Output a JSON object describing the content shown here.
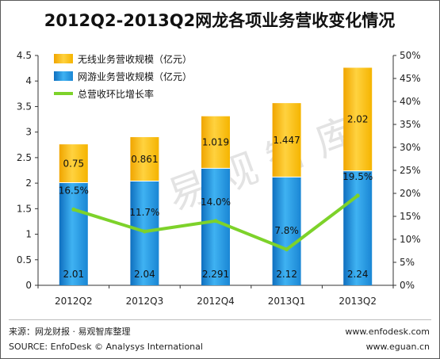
{
  "chart_data": {
    "type": "bar",
    "title": "2012Q2-2013Q2网龙各项业务营收变化情况",
    "categories": [
      "2012Q2",
      "2012Q3",
      "2012Q4",
      "2013Q1",
      "2013Q2"
    ],
    "series": [
      {
        "name": "网游业务营收规模（亿元）",
        "kind": "bar",
        "stack": "revenue",
        "axis": "left",
        "color": "#1f8fd8",
        "values": [
          2.01,
          2.04,
          2.291,
          2.12,
          2.24
        ],
        "labels": [
          "2.01",
          "2.04",
          "2.291",
          "2.12",
          "2.24"
        ]
      },
      {
        "name": "无线业务营收规模（亿元）",
        "kind": "bar",
        "stack": "revenue",
        "axis": "left",
        "color": "#f5b400",
        "values": [
          0.75,
          0.861,
          1.019,
          1.447,
          2.02
        ],
        "labels": [
          "0.75",
          "0.861",
          "1.019",
          "1.447",
          "2.02"
        ]
      },
      {
        "name": "总营收环比增长率",
        "kind": "line",
        "axis": "right",
        "color": "#7dd22a",
        "values": [
          16.5,
          11.7,
          14.0,
          7.8,
          19.5
        ],
        "labels": [
          "16.5%",
          "11.7%",
          "14.0%",
          "7.8%",
          "19.5%"
        ]
      }
    ],
    "ylim": [
      0,
      4.5
    ],
    "y_ticks": [
      "0",
      "0.5",
      "1",
      "1.5",
      "2",
      "2.5",
      "3",
      "3.5",
      "4",
      "4.5"
    ],
    "y2lim": [
      0,
      50
    ],
    "y2_ticks": [
      "0%",
      "5%",
      "10%",
      "15%",
      "20%",
      "25%",
      "30%",
      "35%",
      "40%",
      "45%",
      "50%"
    ],
    "grid": false,
    "legend_position": "top-left",
    "watermark": "易观智库"
  },
  "footer": {
    "source_cn": "来源：网龙财报 · 易观智库整理",
    "source_en": "SOURCE: EnfoDesk © Analysys International",
    "site1": "www.enfodesk.com",
    "site2": "www.eguan.cn"
  }
}
